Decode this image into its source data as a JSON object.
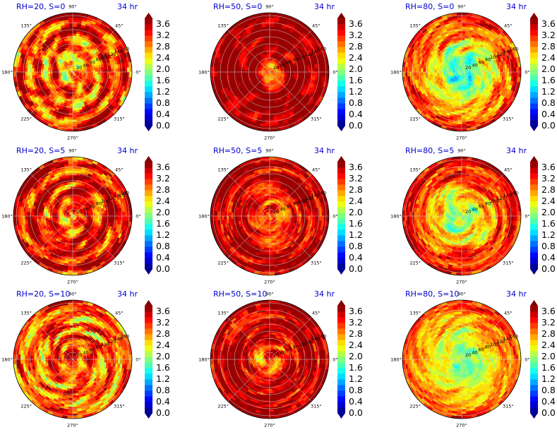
{
  "chart_data": {
    "type": "polar-colormap-grid",
    "time_label": "34 hr",
    "colorbar": {
      "ticks": [
        "0.0",
        "0.4",
        "0.8",
        "1.2",
        "1.6",
        "2.0",
        "2.4",
        "2.8",
        "3.2",
        "3.6"
      ],
      "min": 0.0,
      "max": 3.8,
      "extend": "both"
    },
    "angle_labels": [
      "90°",
      "45°",
      "0°",
      "315°",
      "270°",
      "225°",
      "180°",
      "135°"
    ],
    "radial_labels": [
      "20",
      "40",
      "60",
      "80",
      "100",
      "120",
      "140",
      "160"
    ],
    "panels": [
      {
        "title": "RH=20, S=0",
        "row": 0,
        "col": 0,
        "field": {
          "base": 3.1,
          "core": 2.7,
          "core_radius": 0.25,
          "rings": 0.5,
          "noise": 0.8,
          "spiral": 0.1
        }
      },
      {
        "title": "RH=50, S=0",
        "row": 0,
        "col": 1,
        "field": {
          "base": 3.7,
          "core": 2.6,
          "core_radius": 0.2,
          "rings": 0.15,
          "noise": 0.45,
          "spiral": 0.1
        }
      },
      {
        "title": "RH=80, S=0",
        "row": 0,
        "col": 2,
        "field": {
          "base": 3.2,
          "core": 1.6,
          "core_radius": 0.55,
          "rings": 0.2,
          "noise": 0.55,
          "spiral": 0.3
        }
      },
      {
        "title": "RH=20, S=5",
        "row": 1,
        "col": 0,
        "field": {
          "base": 3.3,
          "core": 2.8,
          "core_radius": 0.2,
          "rings": 0.45,
          "noise": 0.7,
          "spiral": 0.2
        }
      },
      {
        "title": "RH=50, S=5",
        "row": 1,
        "col": 1,
        "field": {
          "base": 3.6,
          "core": 2.9,
          "core_radius": 0.45,
          "rings": 0.3,
          "noise": 0.5,
          "spiral": 0.5
        }
      },
      {
        "title": "RH=80, S=5",
        "row": 1,
        "col": 2,
        "field": {
          "base": 3.4,
          "core": 1.9,
          "core_radius": 0.55,
          "rings": 0.3,
          "noise": 0.5,
          "spiral": 0.4
        }
      },
      {
        "title": "RH=20, S=10",
        "row": 2,
        "col": 0,
        "field": {
          "base": 3.0,
          "core": 3.2,
          "core_radius": 0.3,
          "rings": 0.4,
          "noise": 0.75,
          "spiral": 0.3
        }
      },
      {
        "title": "RH=50, S=10",
        "row": 2,
        "col": 1,
        "field": {
          "base": 3.6,
          "core": 3.0,
          "core_radius": 0.4,
          "rings": 0.3,
          "noise": 0.5,
          "spiral": 0.6
        }
      },
      {
        "title": "RH=80, S=10",
        "row": 2,
        "col": 2,
        "field": {
          "base": 3.3,
          "core": 1.9,
          "core_radius": 0.75,
          "rings": 0.15,
          "noise": 0.45,
          "spiral": 0.3
        }
      }
    ]
  }
}
